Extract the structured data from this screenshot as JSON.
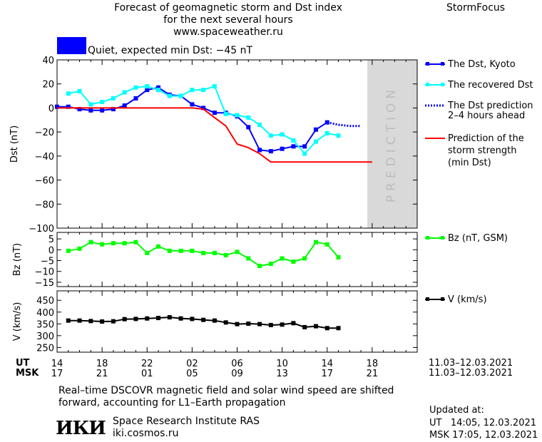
{
  "header": {
    "title_line1": "Forecast of geomagnetic storm and Dst index",
    "title_line2": "for the next several hours",
    "url": "www.spaceweather.ru",
    "brand": "StormFocus"
  },
  "status": {
    "label": "Quiet, expected min Dst: −45 nT",
    "color": "#0000ff"
  },
  "prediction_label": "PREDICTION",
  "legend": {
    "dst_kyoto": "The Dst, Kyoto",
    "dst_recovered": "The recovered Dst",
    "dst_prediction_1": "The Dst prediction",
    "dst_prediction_2": "2–4 hours ahead",
    "storm_1": "Prediction of the",
    "storm_2": "storm strength",
    "storm_3": "(min Dst)",
    "bz": "Bz (nT, GSM)",
    "v": "V (km/s)"
  },
  "x_axis": {
    "ut_label": "UT",
    "msk_label": "MSK",
    "ut_ticks": [
      "14",
      "18",
      "22",
      "02",
      "06",
      "10",
      "14",
      "18"
    ],
    "msk_ticks": [
      "17",
      "21",
      "01",
      "05",
      "09",
      "13",
      "17",
      "21"
    ],
    "date_range_ut": "11.03–12.03.2021",
    "date_range_msk": "11.03–12.03.2021"
  },
  "footer": {
    "note_line1": "Real–time DSCOVR magnetic field and solar wind speed are shifted",
    "note_line2": "forward, accounting for L1–Earth propagation",
    "logo": "ИКИ",
    "institute": "Space Research Institute RAS",
    "site": "iki.cosmos.ru",
    "updated_label": "Updated at:",
    "updated_ut": "UT   14:05, 12.03.2021",
    "updated_msk": "MSK 17:05, 12.03.2021"
  },
  "colors": {
    "dst_kyoto": "#0000ff",
    "dst_recovered": "#00ffff",
    "storm": "#ff0000",
    "bz": "#00ff00",
    "v": "#000000",
    "prediction_band": "#d9d9d9"
  },
  "chart_data": [
    {
      "type": "line",
      "ylabel": "Dst (nT)",
      "ylim": [
        -100,
        40
      ],
      "yticks": [
        40,
        20,
        0,
        -20,
        -40,
        -60,
        -80,
        -100
      ],
      "xlim": [
        14,
        42
      ],
      "x_unit": "hours UT from 11.03.2021 00:00",
      "prediction_band": [
        42,
        46
      ],
      "series": [
        {
          "name": "The Dst, Kyoto",
          "marker": "square",
          "x": [
            14,
            15,
            16,
            17,
            18,
            19,
            20,
            21,
            22,
            23,
            24,
            25,
            26,
            27,
            28,
            29,
            30,
            31,
            32,
            33,
            34,
            35,
            36,
            37,
            38
          ],
          "y": [
            1,
            1,
            -1,
            -2,
            -2,
            -1,
            2,
            8,
            15,
            17,
            11,
            10,
            3,
            0,
            -4,
            -4,
            -7,
            -16,
            -35,
            -36,
            -34,
            -32,
            -32,
            -18,
            -12
          ]
        },
        {
          "name": "The recovered Dst",
          "marker": "square",
          "x": [
            15,
            16,
            17,
            18,
            19,
            20,
            21,
            22,
            23,
            24,
            25,
            26,
            27,
            28,
            29,
            30,
            31,
            32,
            33,
            34,
            35,
            36,
            37,
            38,
            39
          ],
          "y": [
            12,
            14,
            3,
            5,
            8,
            13,
            17,
            18,
            15,
            10,
            10,
            15,
            15,
            18,
            -5,
            -6,
            -8,
            -14,
            -23,
            -22,
            -27,
            -38,
            -28,
            -21,
            -23
          ]
        },
        {
          "name": "The Dst prediction 2–4 hours ahead",
          "style": "dotted",
          "x": [
            38,
            39,
            40,
            41
          ],
          "y": [
            -12,
            -14,
            -15,
            -15
          ]
        },
        {
          "name": "Prediction of the storm strength (min Dst)",
          "x": [
            14,
            26,
            27,
            28,
            29,
            30,
            31,
            32,
            33,
            34,
            42
          ],
          "y": [
            0,
            0,
            -1,
            -8,
            -15,
            -30,
            -33,
            -38,
            -45,
            -45,
            -45
          ]
        }
      ]
    },
    {
      "type": "line",
      "ylabel": "Bz (nT)",
      "ylim": [
        -17,
        8
      ],
      "yticks": [
        5,
        0,
        -5,
        -10,
        -15
      ],
      "series": [
        {
          "name": "Bz (nT, GSM)",
          "marker": "square",
          "x": [
            15,
            16,
            17,
            18,
            19,
            20,
            21,
            22,
            23,
            24,
            25,
            26,
            27,
            28,
            29,
            30,
            31,
            32,
            33,
            34,
            35,
            36,
            37,
            38,
            39
          ],
          "y": [
            -0.5,
            0.5,
            3.5,
            2.5,
            3,
            3,
            3.5,
            -1.5,
            1.5,
            -0.5,
            -0.5,
            -0.5,
            -1.5,
            -1.5,
            -2.5,
            -1,
            -4,
            -7.5,
            -6.5,
            -4,
            -5.5,
            -4,
            3.5,
            2.5,
            -3.5
          ]
        }
      ]
    },
    {
      "type": "line",
      "ylabel": "V (km/s)",
      "ylim": [
        230,
        490
      ],
      "yticks": [
        450,
        400,
        350,
        300,
        250
      ],
      "series": [
        {
          "name": "V (km/s)",
          "marker": "square",
          "x": [
            15,
            16,
            17,
            18,
            19,
            20,
            21,
            22,
            23,
            24,
            25,
            26,
            27,
            28,
            29,
            30,
            31,
            32,
            33,
            34,
            35,
            36,
            37,
            38,
            39
          ],
          "y": [
            364,
            364,
            362,
            360,
            361,
            370,
            371,
            373,
            375,
            378,
            373,
            371,
            367,
            364,
            356,
            349,
            351,
            349,
            345,
            347,
            353,
            336,
            340,
            332,
            332
          ]
        }
      ]
    }
  ]
}
